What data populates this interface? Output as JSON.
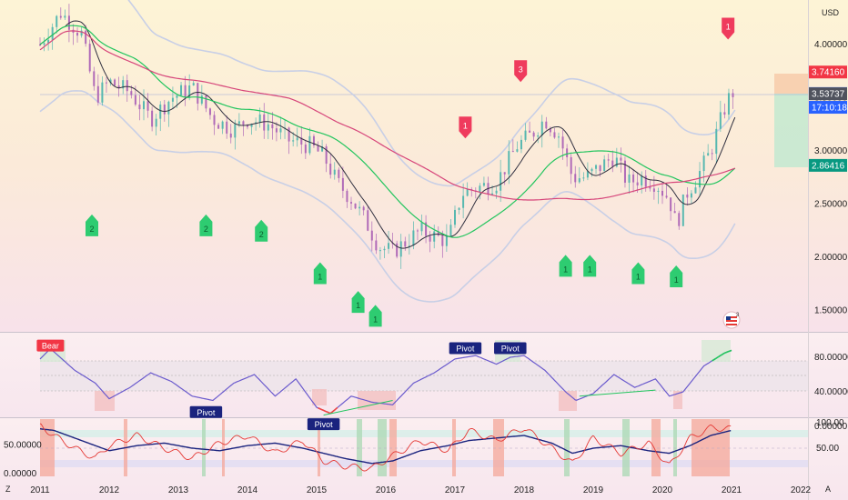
{
  "chart_data": [
    {
      "type": "candlestick",
      "currency": "USD",
      "title": "",
      "y_ticks": [
        "4.00000",
        "3.50000",
        "3.00000",
        "2.50000",
        "2.00000",
        "1.50000"
      ],
      "y_tick_values": [
        4.0,
        3.5,
        3.0,
        2.5,
        2.0,
        1.5
      ],
      "ylim": [
        1.3,
        4.5
      ],
      "x_ticks": [
        "2011",
        "2012",
        "2013",
        "2014",
        "2015",
        "2016",
        "2017",
        "2018",
        "2019",
        "2020",
        "2021",
        "2022"
      ],
      "x_tick_values": [
        2011,
        2012,
        2013,
        2014,
        2015,
        2016,
        2017,
        2018,
        2019,
        2020,
        2021,
        2022
      ],
      "xlim": [
        2011,
        2022.5
      ],
      "close_series": {
        "name": "",
        "x": [
          2011.0,
          2011.3,
          2011.6,
          2011.8,
          2012.0,
          2012.3,
          2012.6,
          2012.9,
          2013.2,
          2013.5,
          2013.8,
          2014.0,
          2014.3,
          2014.6,
          2014.9,
          2015.1,
          2015.3,
          2015.5,
          2015.7,
          2015.9,
          2016.1,
          2016.3,
          2016.5,
          2016.7,
          2016.9,
          2017.1,
          2017.3,
          2017.6,
          2017.9,
          2018.1,
          2018.3,
          2018.5,
          2018.7,
          2018.9,
          2019.1,
          2019.3,
          2019.5,
          2019.7,
          2019.9,
          2020.1,
          2020.2,
          2020.35,
          2020.5,
          2020.7,
          2020.9,
          2021.0
        ],
        "y": [
          4.0,
          4.3,
          4.1,
          3.5,
          3.65,
          3.55,
          3.3,
          3.5,
          3.6,
          3.3,
          3.2,
          3.3,
          3.25,
          3.1,
          3.05,
          2.95,
          2.7,
          2.55,
          2.35,
          2.1,
          2.05,
          2.15,
          2.25,
          2.2,
          2.15,
          2.6,
          2.65,
          2.7,
          3.05,
          3.15,
          3.3,
          3.15,
          2.75,
          2.75,
          2.85,
          2.95,
          2.7,
          2.75,
          2.7,
          2.55,
          2.3,
          2.6,
          2.75,
          3.0,
          3.4,
          3.55
        ]
      },
      "price_labels": [
        {
          "text": "3.74160",
          "value": 3.7416,
          "color": "#f23645"
        },
        {
          "text": "3.53943",
          "value": 3.53943,
          "color": "#2962ff"
        },
        {
          "text": "17:10:18",
          "value": 3.41,
          "color": "#2962ff"
        },
        {
          "text": "3.53737",
          "value": 3.53737,
          "color": "#50535e"
        },
        {
          "text": "2.86416",
          "value": 2.86416,
          "color": "#089981"
        }
      ],
      "buy_signals": [
        {
          "label": "2",
          "x": 2011.75,
          "y": 2.3
        },
        {
          "label": "2",
          "x": 2013.4,
          "y": 2.3
        },
        {
          "label": "2",
          "x": 2014.2,
          "y": 2.25
        },
        {
          "label": "1",
          "x": 2015.05,
          "y": 1.85
        },
        {
          "label": "1",
          "x": 2015.6,
          "y": 1.58
        },
        {
          "label": "1",
          "x": 2015.85,
          "y": 1.45
        },
        {
          "label": "1",
          "x": 2018.6,
          "y": 1.92
        },
        {
          "label": "1",
          "x": 2018.95,
          "y": 1.92
        },
        {
          "label": "1",
          "x": 2019.65,
          "y": 1.85
        },
        {
          "label": "1",
          "x": 2020.2,
          "y": 1.82
        }
      ],
      "sell_signals": [
        {
          "label": "1",
          "x": 2020.95,
          "y": 4.15
        },
        {
          "label": "3",
          "x": 2017.95,
          "y": 3.75
        },
        {
          "label": "1",
          "x": 2017.15,
          "y": 3.22
        }
      ]
    },
    {
      "type": "line",
      "y_ticks": [
        "80.00000",
        "40.00000",
        "0.00000"
      ],
      "y_tick_values": [
        80,
        40,
        0
      ],
      "ylim": [
        0,
        100
      ],
      "series": [
        {
          "name": "",
          "color": "#6a5acd",
          "x": [
            2011.0,
            2011.15,
            2011.5,
            2011.8,
            2012.0,
            2012.3,
            2012.6,
            2012.9,
            2013.2,
            2013.5,
            2013.8,
            2014.1,
            2014.4,
            2014.7,
            2015.0,
            2015.2,
            2015.5,
            2015.8,
            2016.1,
            2016.4,
            2016.7,
            2017.0,
            2017.3,
            2017.6,
            2017.8,
            2018.0,
            2018.3,
            2018.6,
            2018.75,
            2019.0,
            2019.3,
            2019.6,
            2019.9,
            2020.1,
            2020.3,
            2020.6,
            2020.9,
            2021.0
          ],
          "y": [
            78,
            90,
            65,
            50,
            32,
            45,
            62,
            52,
            35,
            30,
            50,
            60,
            35,
            55,
            22,
            15,
            35,
            28,
            25,
            50,
            62,
            78,
            82,
            72,
            80,
            82,
            65,
            40,
            30,
            38,
            60,
            45,
            55,
            35,
            40,
            70,
            85,
            88
          ]
        }
      ],
      "annotations": [
        {
          "text": "Bear",
          "x": 2011.15,
          "y": 93,
          "color": "#f23645"
        },
        {
          "text": "Pivot",
          "x": 2013.4,
          "y": 16,
          "color": "#1a237e"
        },
        {
          "text": "Pivot",
          "x": 2015.1,
          "y": 2,
          "color": "#1a237e"
        },
        {
          "text": "Pivot",
          "x": 2017.15,
          "y": 90,
          "color": "#1a237e"
        },
        {
          "text": "Pivot",
          "x": 2017.8,
          "y": 90,
          "color": "#1a237e"
        }
      ]
    },
    {
      "type": "line",
      "y_ticks": [
        "100.00",
        "50.00000",
        "50.00",
        "0.00000"
      ],
      "ylim": [
        0,
        100
      ],
      "series": [
        {
          "name": "",
          "color": "#1a237e",
          "x": [
            2011.0,
            2011.2,
            2011.5,
            2011.8,
            2012.0,
            2012.4,
            2012.8,
            2013.2,
            2013.6,
            2014.0,
            2014.4,
            2014.8,
            2015.1,
            2015.4,
            2015.8,
            2016.1,
            2016.5,
            2016.9,
            2017.2,
            2017.6,
            2018.0,
            2018.4,
            2018.7,
            2019.0,
            2019.4,
            2019.8,
            2020.1,
            2020.4,
            2020.7,
            2021.0
          ],
          "y": [
            88,
            85,
            70,
            55,
            45,
            55,
            60,
            50,
            45,
            55,
            60,
            50,
            40,
            30,
            20,
            25,
            45,
            55,
            65,
            70,
            75,
            60,
            40,
            50,
            55,
            45,
            40,
            55,
            75,
            85
          ]
        },
        {
          "name": "",
          "color": "#e53935",
          "x": [
            2011.0,
            2011.2,
            2011.5,
            2011.8,
            2012.0,
            2012.4,
            2012.8,
            2013.2,
            2013.6,
            2014.0,
            2014.4,
            2014.8,
            2015.1,
            2015.4,
            2015.8,
            2016.1,
            2016.5,
            2016.9,
            2017.2,
            2017.6,
            2018.0,
            2018.4,
            2018.7,
            2019.0,
            2019.4,
            2019.8,
            2020.1,
            2020.4,
            2020.7,
            2021.0
          ],
          "y": [
            95,
            75,
            50,
            30,
            55,
            75,
            50,
            30,
            60,
            75,
            40,
            65,
            25,
            15,
            10,
            35,
            65,
            45,
            85,
            65,
            90,
            50,
            20,
            70,
            40,
            60,
            15,
            70,
            90,
            88
          ]
        }
      ],
      "left_label": "Z",
      "right_label": "A"
    }
  ]
}
